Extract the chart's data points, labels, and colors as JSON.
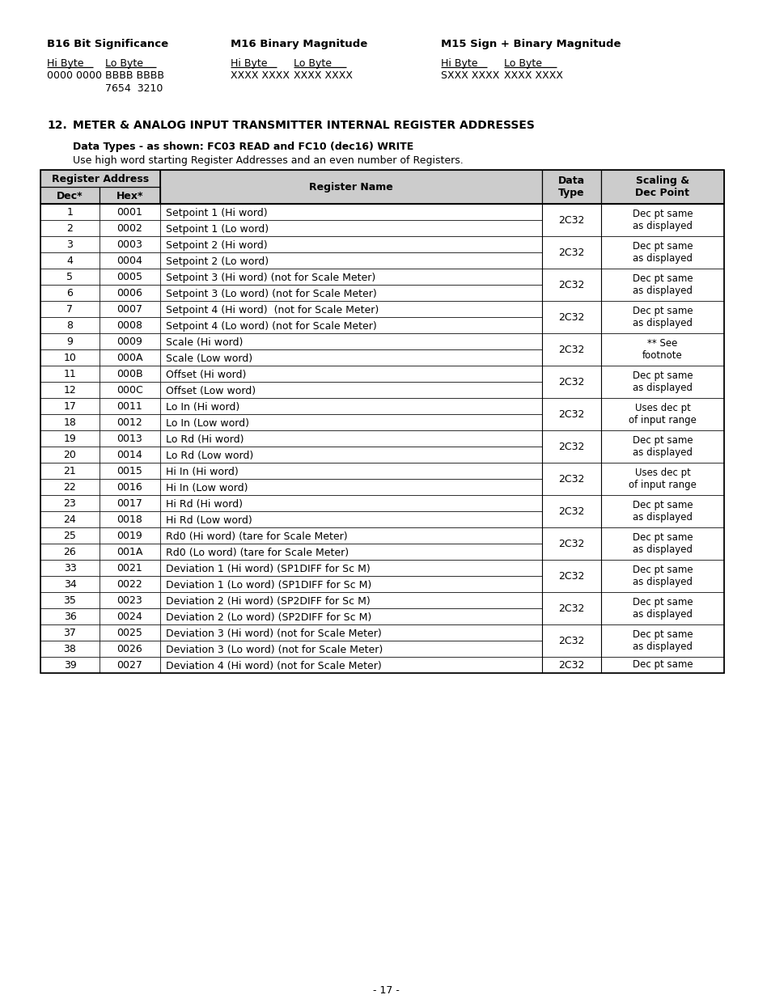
{
  "page_bg": "#ffffff",
  "top_section": {
    "b16_title": "B16 Bit Significance",
    "b16_hi": "Hi Byte",
    "b16_lo": "Lo Byte",
    "b16_hi_val": "0000 0000",
    "b16_lo_val1": "BBBB BBBB",
    "b16_lo_val2": "7654  3210",
    "m16_title": "M16 Binary Magnitude",
    "m16_hi": "Hi Byte",
    "m16_lo": "Lo Byte",
    "m16_hi_val": "XXXX XXXX",
    "m16_lo_val": "XXXX XXXX",
    "m15_title": "M15 Sign + Binary Magnitude",
    "m15_hi": "Hi Byte",
    "m15_lo": "Lo Byte",
    "m15_hi_val": "SXXX XXXX",
    "m15_lo_val": "XXXX XXXX"
  },
  "section_num": "12.",
  "section_title": "METER & ANALOG INPUT TRANSMITTER INTERNAL REGISTER ADDRESSES",
  "subtitle": "Data Types - as shown: FC03 READ and FC10 (dec16) WRITE",
  "subtitle2": "Use high word starting Register Addresses and an even number of Registers.",
  "header_bg": "#cccccc",
  "row_pairs": [
    {
      "rows": [
        {
          "dec": "1",
          "hex": "0001",
          "name": "Setpoint 1 (Hi word)"
        },
        {
          "dec": "2",
          "hex": "0002",
          "name": "Setpoint 1 (Lo word)"
        }
      ],
      "dtype": "2C32",
      "scaling": "Dec pt same\nas displayed"
    },
    {
      "rows": [
        {
          "dec": "3",
          "hex": "0003",
          "name": "Setpoint 2 (Hi word)"
        },
        {
          "dec": "4",
          "hex": "0004",
          "name": "Setpoint 2 (Lo word)"
        }
      ],
      "dtype": "2C32",
      "scaling": "Dec pt same\nas displayed"
    },
    {
      "rows": [
        {
          "dec": "5",
          "hex": "0005",
          "name": "Setpoint 3 (Hi word) (not for Scale Meter)"
        },
        {
          "dec": "6",
          "hex": "0006",
          "name": "Setpoint 3 (Lo word) (not for Scale Meter)"
        }
      ],
      "dtype": "2C32",
      "scaling": "Dec pt same\nas displayed"
    },
    {
      "rows": [
        {
          "dec": "7",
          "hex": "0007",
          "name": "Setpoint 4 (Hi word)  (not for Scale Meter)"
        },
        {
          "dec": "8",
          "hex": "0008",
          "name": "Setpoint 4 (Lo word) (not for Scale Meter)"
        }
      ],
      "dtype": "2C32",
      "scaling": "Dec pt same\nas displayed"
    },
    {
      "rows": [
        {
          "dec": "9",
          "hex": "0009",
          "name": "Scale (Hi word)"
        },
        {
          "dec": "10",
          "hex": "000A",
          "name": "Scale (Low word)"
        }
      ],
      "dtype": "2C32",
      "scaling": "** See\nfootnote"
    },
    {
      "rows": [
        {
          "dec": "11",
          "hex": "000B",
          "name": "Offset (Hi word)"
        },
        {
          "dec": "12",
          "hex": "000C",
          "name": "Offset (Low word)"
        }
      ],
      "dtype": "2C32",
      "scaling": "Dec pt same\nas displayed"
    },
    {
      "rows": [
        {
          "dec": "17",
          "hex": "0011",
          "name": "Lo In (Hi word)"
        },
        {
          "dec": "18",
          "hex": "0012",
          "name": "Lo In (Low word)"
        }
      ],
      "dtype": "2C32",
      "scaling": "Uses dec pt\nof input range"
    },
    {
      "rows": [
        {
          "dec": "19",
          "hex": "0013",
          "name": "Lo Rd (Hi word)"
        },
        {
          "dec": "20",
          "hex": "0014",
          "name": "Lo Rd (Low word)"
        }
      ],
      "dtype": "2C32",
      "scaling": "Dec pt same\nas displayed"
    },
    {
      "rows": [
        {
          "dec": "21",
          "hex": "0015",
          "name": "Hi In (Hi word)"
        },
        {
          "dec": "22",
          "hex": "0016",
          "name": "Hi In (Low word)"
        }
      ],
      "dtype": "2C32",
      "scaling": "Uses dec pt\nof input range"
    },
    {
      "rows": [
        {
          "dec": "23",
          "hex": "0017",
          "name": "Hi Rd (Hi word)"
        },
        {
          "dec": "24",
          "hex": "0018",
          "name": "Hi Rd (Low word)"
        }
      ],
      "dtype": "2C32",
      "scaling": "Dec pt same\nas displayed"
    },
    {
      "rows": [
        {
          "dec": "25",
          "hex": "0019",
          "name": "Rd0 (Hi word) (tare for Scale Meter)"
        },
        {
          "dec": "26",
          "hex": "001A",
          "name": "Rd0 (Lo word) (tare for Scale Meter)"
        }
      ],
      "dtype": "2C32",
      "scaling": "Dec pt same\nas displayed"
    },
    {
      "rows": [
        {
          "dec": "33",
          "hex": "0021",
          "name": "Deviation 1 (Hi word) (SP1DIFF for Sc M)"
        },
        {
          "dec": "34",
          "hex": "0022",
          "name": "Deviation 1 (Lo word) (SP1DIFF for Sc M)"
        }
      ],
      "dtype": "2C32",
      "scaling": "Dec pt same\nas displayed"
    },
    {
      "rows": [
        {
          "dec": "35",
          "hex": "0023",
          "name": "Deviation 2 (Hi word) (SP2DIFF for Sc M)"
        },
        {
          "dec": "36",
          "hex": "0024",
          "name": "Deviation 2 (Lo word) (SP2DIFF for Sc M)"
        }
      ],
      "dtype": "2C32",
      "scaling": "Dec pt same\nas displayed"
    },
    {
      "rows": [
        {
          "dec": "37",
          "hex": "0025",
          "name": "Deviation 3 (Hi word) (not for Scale Meter)"
        },
        {
          "dec": "38",
          "hex": "0026",
          "name": "Deviation 3 (Lo word) (not for Scale Meter)"
        }
      ],
      "dtype": "2C32",
      "scaling": "Dec pt same\nas displayed"
    },
    {
      "rows": [
        {
          "dec": "39",
          "hex": "0027",
          "name": "Deviation 4 (Hi word) (not for Scale Meter)"
        }
      ],
      "dtype": "2C32",
      "scaling": "Dec pt same"
    }
  ],
  "page_num": "- 17 -"
}
